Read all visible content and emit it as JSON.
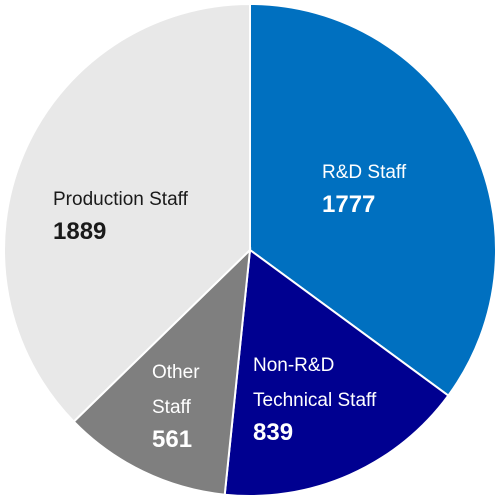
{
  "chart_data": {
    "type": "pie",
    "title": "",
    "start_angle_deg": 0,
    "direction": "clockwise",
    "slices": [
      {
        "label": [
          "R&D Staff"
        ],
        "value": 1777,
        "color": "#0070C0",
        "text_color": "#ffffff"
      },
      {
        "label": [
          "Non-R&D",
          "Technical Staff"
        ],
        "value": 839,
        "color": "#000090",
        "text_color": "#ffffff"
      },
      {
        "label": [
          "Other",
          "Staff"
        ],
        "value": 561,
        "color": "#7F7F7F",
        "text_color": "#ffffff"
      },
      {
        "label": [
          "Production Staff"
        ],
        "value": 1889,
        "color": "#E8E8E8",
        "text_color": "#1a1a1a"
      }
    ]
  }
}
